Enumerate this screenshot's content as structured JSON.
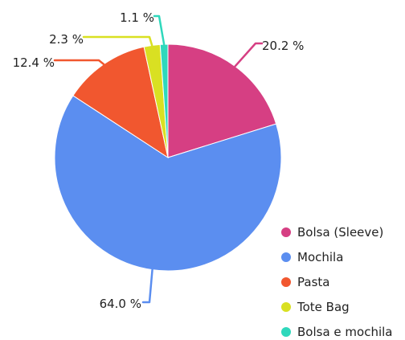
{
  "chart_data": {
    "type": "pie",
    "title": "",
    "categories": [
      "Bolsa (Sleeve)",
      "Mochila",
      "Pasta",
      "Tote Bag",
      "Bolsa e mochila"
    ],
    "values": [
      20.2,
      64.0,
      12.4,
      2.3,
      1.1
    ],
    "labels": [
      "20.2 %",
      "64.0 %",
      "12.4 %",
      "2.3 %",
      "1.1 %"
    ],
    "colors": [
      "#d63f83",
      "#5b8ef0",
      "#f1572f",
      "#d9e022",
      "#2fd8bc"
    ],
    "legend_position": "bottom-right",
    "start_angle": "top",
    "direction": "clockwise"
  }
}
